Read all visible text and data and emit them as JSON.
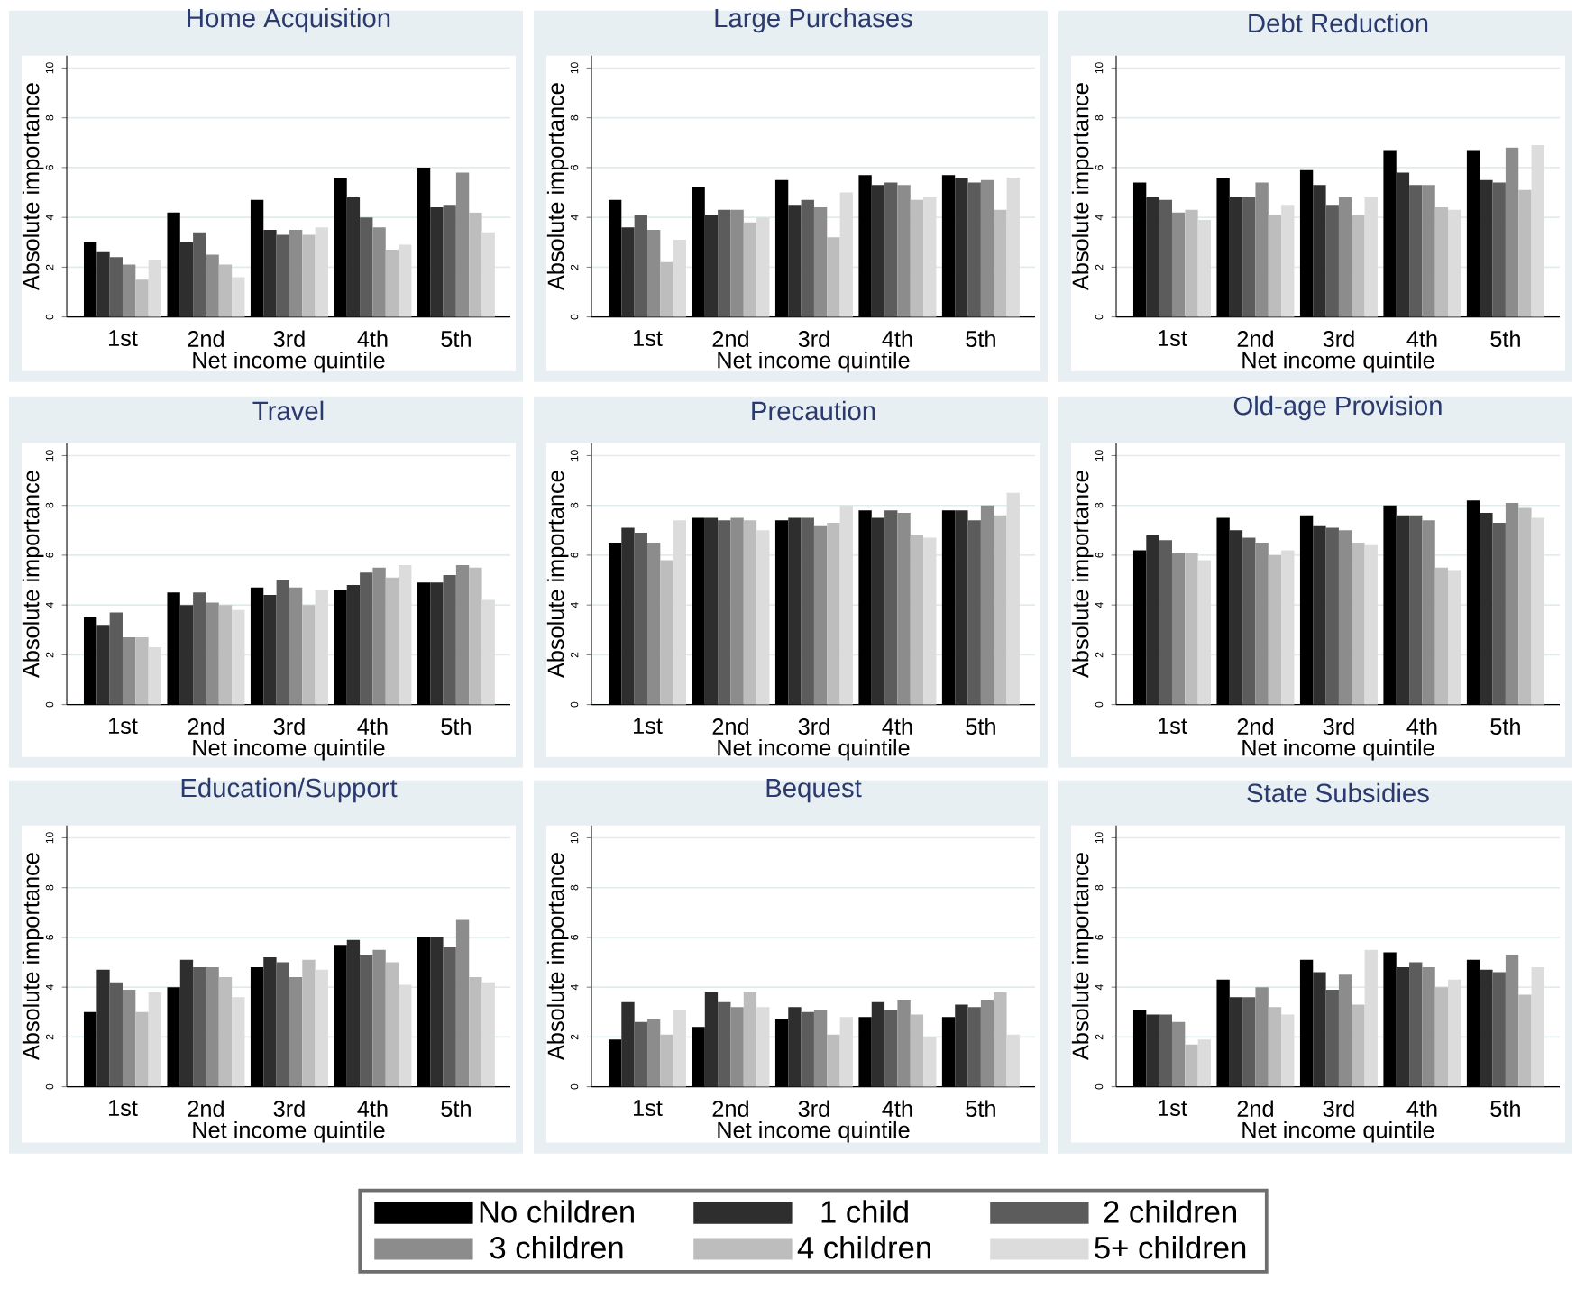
{
  "chart_data": [
    {
      "type": "bar",
      "title": "Home Acquisition",
      "xlabel": "Net income quintile",
      "ylabel": "Absolute importance",
      "categories": [
        "1st",
        "2nd",
        "3rd",
        "4th",
        "5th"
      ],
      "ylim": [
        0,
        10.5
      ],
      "yticks": [
        0,
        2,
        4,
        6,
        8,
        10
      ],
      "grid": "y",
      "series": [
        {
          "color": "#000000",
          "values": [
            3.0,
            4.2,
            4.7,
            5.6,
            6.0
          ]
        },
        {
          "color": "#2e2e2e",
          "values": [
            2.6,
            3.0,
            3.5,
            4.8,
            4.4
          ]
        },
        {
          "color": "#5c5c5c",
          "values": [
            2.4,
            3.4,
            3.3,
            4.0,
            4.5
          ]
        },
        {
          "color": "#8c8c8c",
          "values": [
            2.1,
            2.5,
            3.5,
            3.6,
            5.8
          ]
        },
        {
          "color": "#bdbdbd",
          "values": [
            1.5,
            2.1,
            3.3,
            2.7,
            4.2
          ]
        },
        {
          "color": "#dcdcdc",
          "values": [
            2.3,
            1.6,
            3.6,
            2.9,
            3.4
          ]
        }
      ]
    },
    {
      "type": "bar",
      "title": "Large Purchases",
      "xlabel": "Net income quintile",
      "ylabel": "Absolute importance",
      "categories": [
        "1st",
        "2nd",
        "3rd",
        "4th",
        "5th"
      ],
      "ylim": [
        0,
        10.5
      ],
      "yticks": [
        0,
        2,
        4,
        6,
        8,
        10
      ],
      "grid": "y",
      "series": [
        {
          "color": "#000000",
          "values": [
            4.7,
            5.2,
            5.5,
            5.7,
            5.7
          ]
        },
        {
          "color": "#2e2e2e",
          "values": [
            3.6,
            4.1,
            4.5,
            5.3,
            5.6
          ]
        },
        {
          "color": "#5c5c5c",
          "values": [
            4.1,
            4.3,
            4.7,
            5.4,
            5.4
          ]
        },
        {
          "color": "#8c8c8c",
          "values": [
            3.5,
            4.3,
            4.4,
            5.3,
            5.5
          ]
        },
        {
          "color": "#bdbdbd",
          "values": [
            2.2,
            3.8,
            3.2,
            4.7,
            4.3
          ]
        },
        {
          "color": "#dcdcdc",
          "values": [
            3.1,
            4.0,
            5.0,
            4.8,
            5.6
          ]
        }
      ]
    },
    {
      "type": "bar",
      "title": "Debt Reduction",
      "xlabel": "Net income quintile",
      "ylabel": "Absolute importance",
      "categories": [
        "1st",
        "2nd",
        "3rd",
        "4th",
        "5th"
      ],
      "ylim": [
        0,
        10.5
      ],
      "yticks": [
        0,
        2,
        4,
        6,
        8,
        10
      ],
      "grid": "y",
      "series": [
        {
          "color": "#000000",
          "values": [
            5.4,
            5.6,
            5.9,
            6.7,
            6.7
          ]
        },
        {
          "color": "#2e2e2e",
          "values": [
            4.8,
            4.8,
            5.3,
            5.8,
            5.5
          ]
        },
        {
          "color": "#5c5c5c",
          "values": [
            4.7,
            4.8,
            4.5,
            5.3,
            5.4
          ]
        },
        {
          "color": "#8c8c8c",
          "values": [
            4.2,
            5.4,
            4.8,
            5.3,
            6.8
          ]
        },
        {
          "color": "#bdbdbd",
          "values": [
            4.3,
            4.1,
            4.1,
            4.4,
            5.1
          ]
        },
        {
          "color": "#dcdcdc",
          "values": [
            3.9,
            4.5,
            4.8,
            4.3,
            6.9
          ]
        }
      ]
    },
    {
      "type": "bar",
      "title": "Travel",
      "xlabel": "Net income quintile",
      "ylabel": "Absolute importance",
      "categories": [
        "1st",
        "2nd",
        "3rd",
        "4th",
        "5th"
      ],
      "ylim": [
        0,
        10.5
      ],
      "yticks": [
        0,
        2,
        4,
        6,
        8,
        10
      ],
      "grid": "y",
      "series": [
        {
          "color": "#000000",
          "values": [
            3.5,
            4.5,
            4.7,
            4.6,
            4.9
          ]
        },
        {
          "color": "#2e2e2e",
          "values": [
            3.2,
            4.0,
            4.4,
            4.8,
            4.9
          ]
        },
        {
          "color": "#5c5c5c",
          "values": [
            3.7,
            4.5,
            5.0,
            5.3,
            5.2
          ]
        },
        {
          "color": "#8c8c8c",
          "values": [
            2.7,
            4.1,
            4.7,
            5.5,
            5.6
          ]
        },
        {
          "color": "#bdbdbd",
          "values": [
            2.7,
            4.0,
            4.0,
            5.1,
            5.5
          ]
        },
        {
          "color": "#dcdcdc",
          "values": [
            2.3,
            3.8,
            4.6,
            5.6,
            4.2
          ]
        }
      ]
    },
    {
      "type": "bar",
      "title": "Precaution",
      "xlabel": "Net income quintile",
      "ylabel": "Absolute importance",
      "categories": [
        "1st",
        "2nd",
        "3rd",
        "4th",
        "5th"
      ],
      "ylim": [
        0,
        10.5
      ],
      "yticks": [
        0,
        2,
        4,
        6,
        8,
        10
      ],
      "grid": "y",
      "series": [
        {
          "color": "#000000",
          "values": [
            6.5,
            7.5,
            7.4,
            7.8,
            7.8
          ]
        },
        {
          "color": "#2e2e2e",
          "values": [
            7.1,
            7.5,
            7.5,
            7.5,
            7.8
          ]
        },
        {
          "color": "#5c5c5c",
          "values": [
            6.9,
            7.4,
            7.5,
            7.8,
            7.4
          ]
        },
        {
          "color": "#8c8c8c",
          "values": [
            6.5,
            7.5,
            7.2,
            7.7,
            8.0
          ]
        },
        {
          "color": "#bdbdbd",
          "values": [
            5.8,
            7.4,
            7.3,
            6.8,
            7.6
          ]
        },
        {
          "color": "#dcdcdc",
          "values": [
            7.4,
            7.0,
            8.0,
            6.7,
            8.5
          ]
        }
      ]
    },
    {
      "type": "bar",
      "title": "Old-age Provision",
      "xlabel": "Net income quintile",
      "ylabel": "Absolute importance",
      "categories": [
        "1st",
        "2nd",
        "3rd",
        "4th",
        "5th"
      ],
      "ylim": [
        0,
        10.5
      ],
      "yticks": [
        0,
        2,
        4,
        6,
        8,
        10
      ],
      "grid": "y",
      "series": [
        {
          "color": "#000000",
          "values": [
            6.2,
            7.5,
            7.6,
            8.0,
            8.2
          ]
        },
        {
          "color": "#2e2e2e",
          "values": [
            6.8,
            7.0,
            7.2,
            7.6,
            7.7
          ]
        },
        {
          "color": "#5c5c5c",
          "values": [
            6.6,
            6.7,
            7.1,
            7.6,
            7.3
          ]
        },
        {
          "color": "#8c8c8c",
          "values": [
            6.1,
            6.5,
            7.0,
            7.4,
            8.1
          ]
        },
        {
          "color": "#bdbdbd",
          "values": [
            6.1,
            6.0,
            6.5,
            5.5,
            7.9
          ]
        },
        {
          "color": "#dcdcdc",
          "values": [
            5.8,
            6.2,
            6.4,
            5.4,
            7.5
          ]
        }
      ]
    },
    {
      "type": "bar",
      "title": "Education/Support",
      "xlabel": "Net income quintile",
      "ylabel": "Absolute importance",
      "categories": [
        "1st",
        "2nd",
        "3rd",
        "4th",
        "5th"
      ],
      "ylim": [
        0,
        10.5
      ],
      "yticks": [
        0,
        2,
        4,
        6,
        8,
        10
      ],
      "grid": "y",
      "series": [
        {
          "color": "#000000",
          "values": [
            3.0,
            4.0,
            4.8,
            5.7,
            6.0
          ]
        },
        {
          "color": "#2e2e2e",
          "values": [
            4.7,
            5.1,
            5.2,
            5.9,
            6.0
          ]
        },
        {
          "color": "#5c5c5c",
          "values": [
            4.2,
            4.8,
            5.0,
            5.3,
            5.6
          ]
        },
        {
          "color": "#8c8c8c",
          "values": [
            3.9,
            4.8,
            4.4,
            5.5,
            6.7
          ]
        },
        {
          "color": "#bdbdbd",
          "values": [
            3.0,
            4.4,
            5.1,
            5.0,
            4.4
          ]
        },
        {
          "color": "#dcdcdc",
          "values": [
            3.8,
            3.6,
            4.7,
            4.1,
            4.2
          ]
        }
      ]
    },
    {
      "type": "bar",
      "title": "Bequest",
      "xlabel": "Net income quintile",
      "ylabel": "Absolute importance",
      "categories": [
        "1st",
        "2nd",
        "3rd",
        "4th",
        "5th"
      ],
      "ylim": [
        0,
        10.5
      ],
      "yticks": [
        0,
        2,
        4,
        6,
        8,
        10
      ],
      "grid": "y",
      "legend": "bottom",
      "series": [
        {
          "name": "No children",
          "color": "#000000",
          "values": [
            1.9,
            2.4,
            2.7,
            2.8,
            2.8
          ]
        },
        {
          "name": "1 child",
          "color": "#2e2e2e",
          "values": [
            3.4,
            3.8,
            3.2,
            3.4,
            3.3
          ]
        },
        {
          "name": "2 children",
          "color": "#5c5c5c",
          "values": [
            2.6,
            3.4,
            3.0,
            3.1,
            3.2
          ]
        },
        {
          "name": "3 children",
          "color": "#8c8c8c",
          "values": [
            2.7,
            3.2,
            3.1,
            3.5,
            3.5
          ]
        },
        {
          "name": "4 children",
          "color": "#bdbdbd",
          "values": [
            2.1,
            3.8,
            2.1,
            2.9,
            3.8
          ]
        },
        {
          "name": "5+ children",
          "color": "#dcdcdc",
          "values": [
            3.1,
            3.2,
            2.8,
            2.0,
            2.1
          ]
        }
      ]
    },
    {
      "type": "bar",
      "title": "State Subsidies",
      "xlabel": "Net income quintile",
      "ylabel": "Absolute importance",
      "categories": [
        "1st",
        "2nd",
        "3rd",
        "4th",
        "5th"
      ],
      "ylim": [
        0,
        10.5
      ],
      "yticks": [
        0,
        2,
        4,
        6,
        8,
        10
      ],
      "grid": "y",
      "series": [
        {
          "color": "#000000",
          "values": [
            3.1,
            4.3,
            5.1,
            5.4,
            5.1
          ]
        },
        {
          "color": "#2e2e2e",
          "values": [
            2.9,
            3.6,
            4.6,
            4.8,
            4.7
          ]
        },
        {
          "color": "#5c5c5c",
          "values": [
            2.9,
            3.6,
            3.9,
            5.0,
            4.6
          ]
        },
        {
          "color": "#8c8c8c",
          "values": [
            2.6,
            4.0,
            4.5,
            4.8,
            5.3
          ]
        },
        {
          "color": "#bdbdbd",
          "values": [
            1.7,
            3.2,
            3.3,
            4.0,
            3.7
          ]
        },
        {
          "color": "#dcdcdc",
          "values": [
            1.9,
            2.9,
            5.5,
            4.3,
            4.8
          ]
        }
      ]
    }
  ]
}
